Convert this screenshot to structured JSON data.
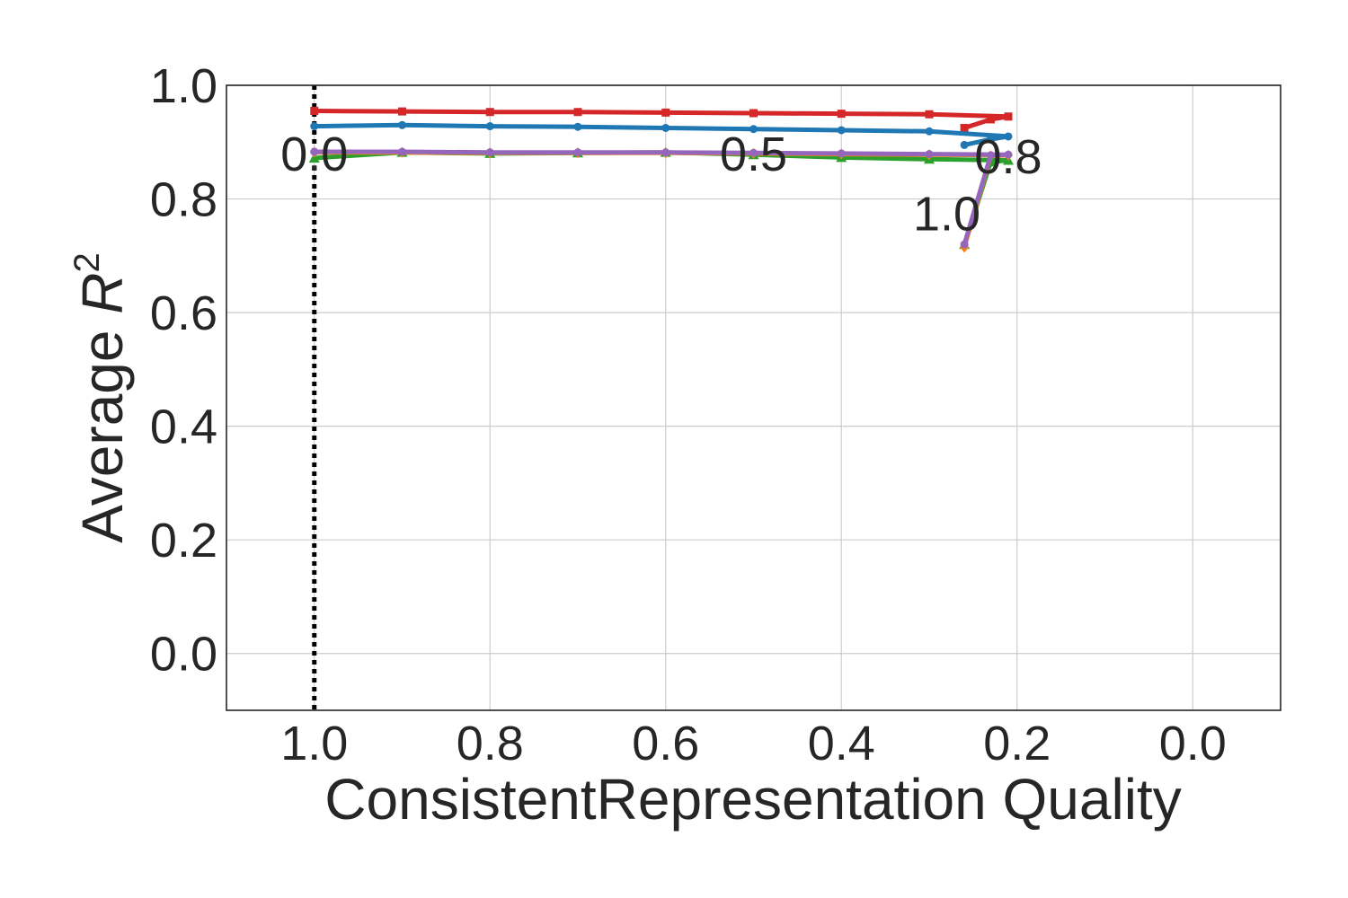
{
  "chart_data": {
    "type": "line",
    "xlabel": "ConsistentRepresentation Quality",
    "ylabel_prefix": "Average ",
    "ylabel_var": "R",
    "ylabel_sup": "2",
    "xlim": [
      1.1,
      -0.1
    ],
    "ylim": [
      -0.1,
      1.0
    ],
    "x_ticks": [
      1.0,
      0.8,
      0.6,
      0.4,
      0.2,
      0.0
    ],
    "x_tick_labels": [
      "1.0",
      "0.8",
      "0.6",
      "0.4",
      "0.2",
      "0.0"
    ],
    "y_ticks": [
      0.0,
      0.2,
      0.4,
      0.6,
      0.8,
      1.0
    ],
    "y_tick_labels": [
      "0.0",
      "0.2",
      "0.4",
      "0.6",
      "0.8",
      "1.0"
    ],
    "grid": true,
    "reference_line": {
      "x": 1.0,
      "style": "dotted",
      "color": "#000000"
    },
    "annotations": [
      {
        "text": "0.0",
        "x": 1.0,
        "y": 0.88
      },
      {
        "text": "0.5",
        "x": 0.5,
        "y": 0.88
      },
      {
        "text": "0.8",
        "x": 0.21,
        "y": 0.875
      },
      {
        "text": "1.0",
        "x": 0.28,
        "y": 0.775
      }
    ],
    "series": [
      {
        "color": "#d62728",
        "marker": "square",
        "x": [
          1.0,
          0.9,
          0.8,
          0.7,
          0.6,
          0.5,
          0.4,
          0.3,
          0.21,
          0.23,
          0.26
        ],
        "y": [
          0.955,
          0.954,
          0.953,
          0.953,
          0.952,
          0.951,
          0.95,
          0.949,
          0.945,
          0.94,
          0.925
        ]
      },
      {
        "color": "#1f77b4",
        "marker": "circle",
        "x": [
          1.0,
          0.9,
          0.8,
          0.7,
          0.6,
          0.5,
          0.4,
          0.3,
          0.21,
          0.23,
          0.26
        ],
        "y": [
          0.928,
          0.93,
          0.928,
          0.927,
          0.925,
          0.923,
          0.921,
          0.919,
          0.91,
          0.905,
          0.895
        ]
      },
      {
        "color": "#2ca02c",
        "marker": "triangle",
        "x": [
          1.0,
          0.9,
          0.8,
          0.7,
          0.6,
          0.5,
          0.4,
          0.3,
          0.21,
          0.23,
          0.26
        ],
        "y": [
          0.872,
          0.882,
          0.88,
          0.881,
          0.882,
          0.878,
          0.873,
          0.87,
          0.868,
          0.865,
          0.72
        ]
      },
      {
        "color": "#ff7f0e",
        "marker": "diamond",
        "x": [
          1.0,
          0.9,
          0.8,
          0.7,
          0.6,
          0.5,
          0.4,
          0.3,
          0.21,
          0.23,
          0.26
        ],
        "y": [
          0.882,
          0.882,
          0.881,
          0.881,
          0.881,
          0.88,
          0.879,
          0.878,
          0.877,
          0.876,
          0.715
        ]
      },
      {
        "color": "#9467bd",
        "marker": "circle",
        "x": [
          1.0,
          0.9,
          0.8,
          0.7,
          0.6,
          0.5,
          0.4,
          0.3,
          0.21,
          0.23,
          0.26
        ],
        "y": [
          0.883,
          0.883,
          0.882,
          0.882,
          0.882,
          0.881,
          0.88,
          0.879,
          0.878,
          0.877,
          0.72
        ]
      }
    ]
  }
}
